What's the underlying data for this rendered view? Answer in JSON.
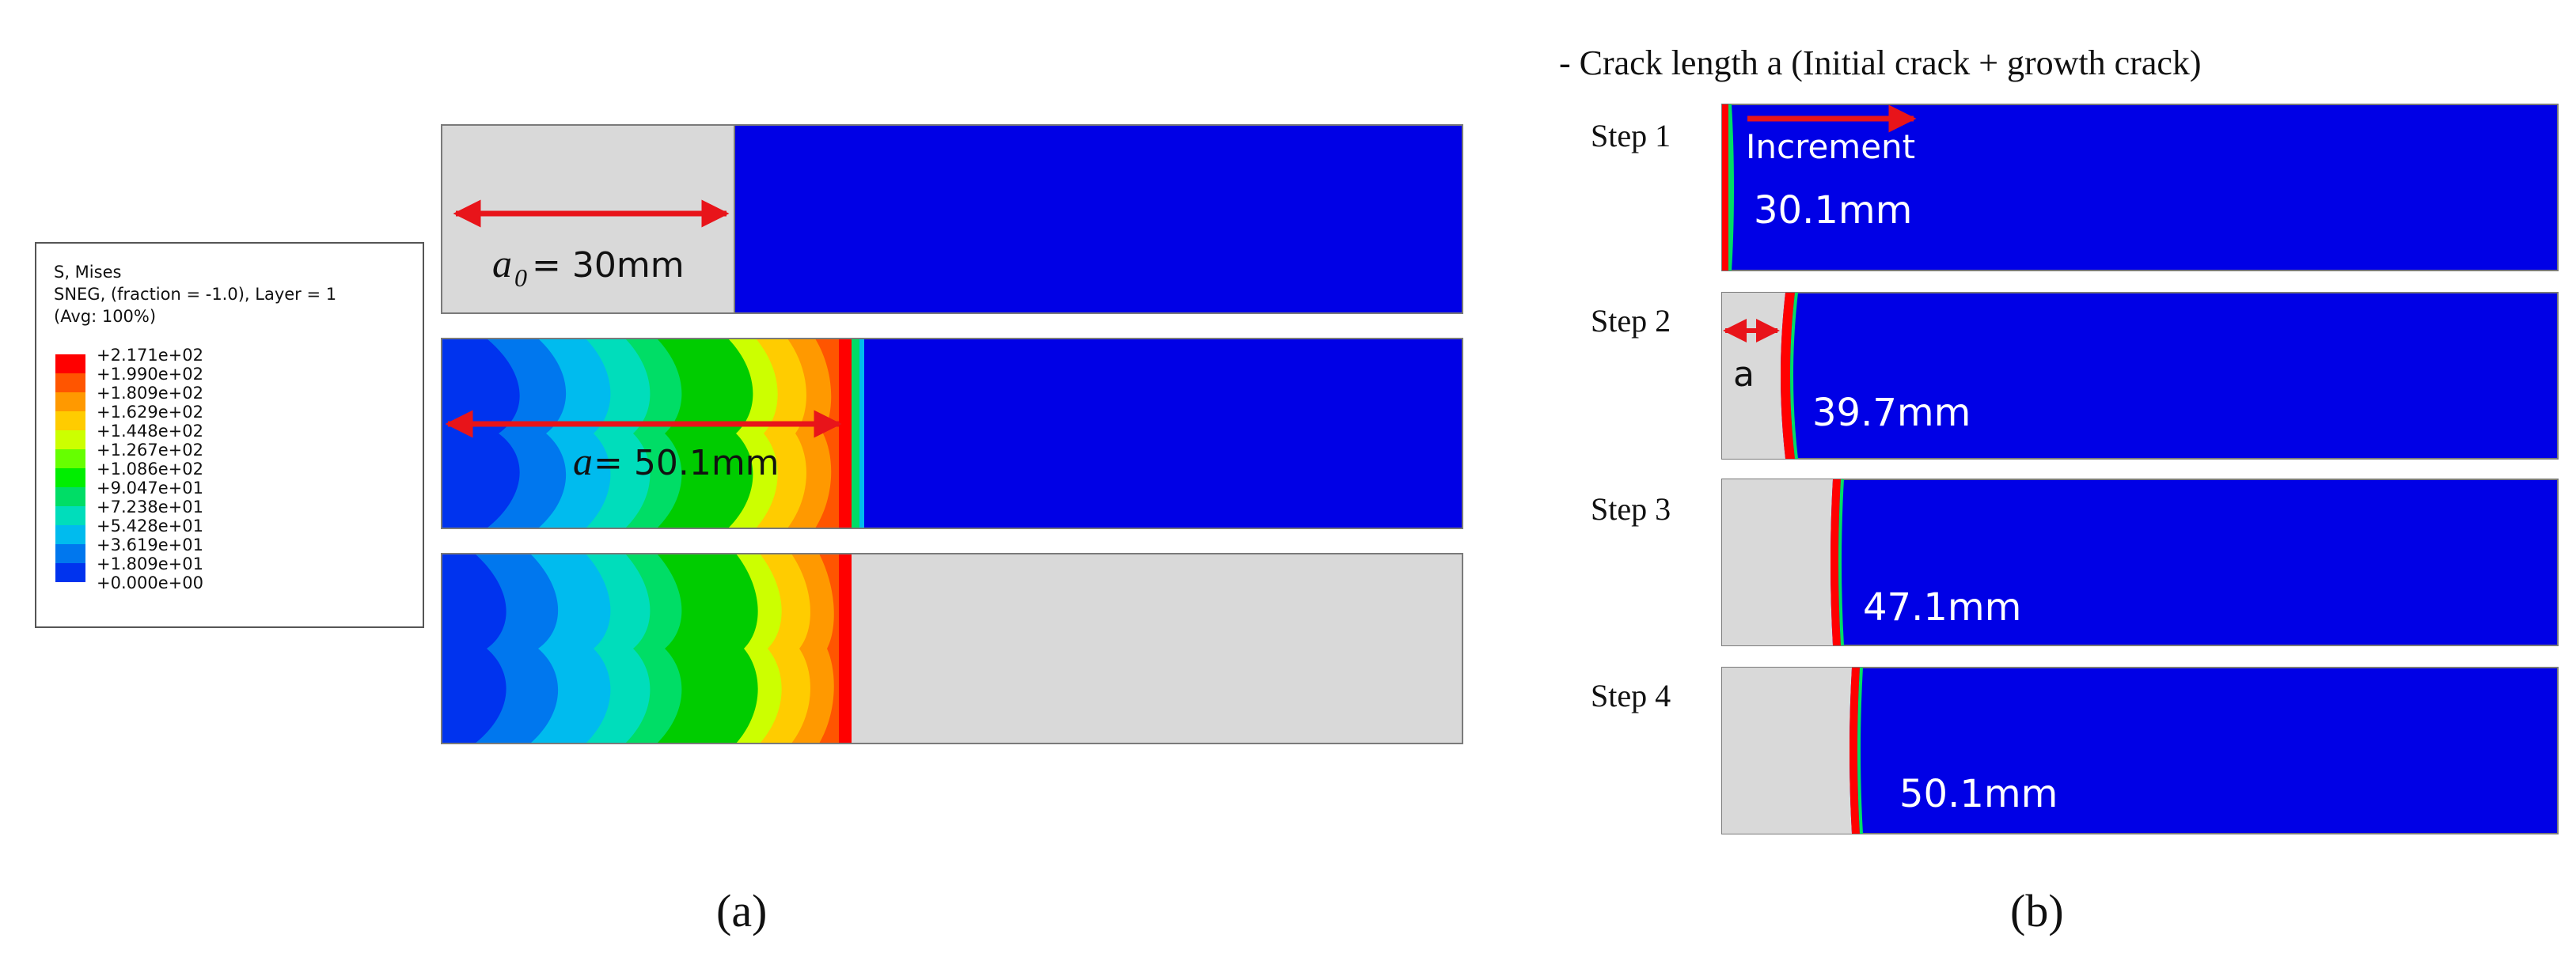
{
  "legend": {
    "title": "S, Mises",
    "line2": "SNEG, (fraction = -1.0), Layer = 1",
    "line3": "(Avg: 100%)",
    "values": [
      "+2.171e+02",
      "+1.990e+02",
      "+1.809e+02",
      "+1.629e+02",
      "+1.448e+02",
      "+1.267e+02",
      "+1.086e+02",
      "+9.047e+01",
      "+7.238e+01",
      "+5.428e+01",
      "+3.619e+01",
      "+1.809e+01",
      "+0.000e+00"
    ],
    "colors": [
      "#ff0000",
      "#ff5500",
      "#ff9900",
      "#ffcc00",
      "#ccff00",
      "#66ff00",
      "#00ee00",
      "#00dd66",
      "#00ddbb",
      "#00bbee",
      "#0077ee",
      "#0033ee"
    ]
  },
  "panel_a": {
    "a0_label": "a",
    "a0_sub": "0",
    "a0_value": "= 30mm",
    "a_label": "a",
    "a_value": " = 50.1mm",
    "caption": "(a)"
  },
  "panel_b": {
    "title": "- Crack length a (Initial crack + growth crack)",
    "increment": "Increment",
    "a_label": "a",
    "caption": "(b)",
    "steps": [
      {
        "label": "Step 1",
        "value": "30.1mm"
      },
      {
        "label": "Step 2",
        "value": "39.7mm"
      },
      {
        "label": "Step 3",
        "value": "47.1mm"
      },
      {
        "label": "Step 4",
        "value": "50.1mm"
      }
    ]
  }
}
